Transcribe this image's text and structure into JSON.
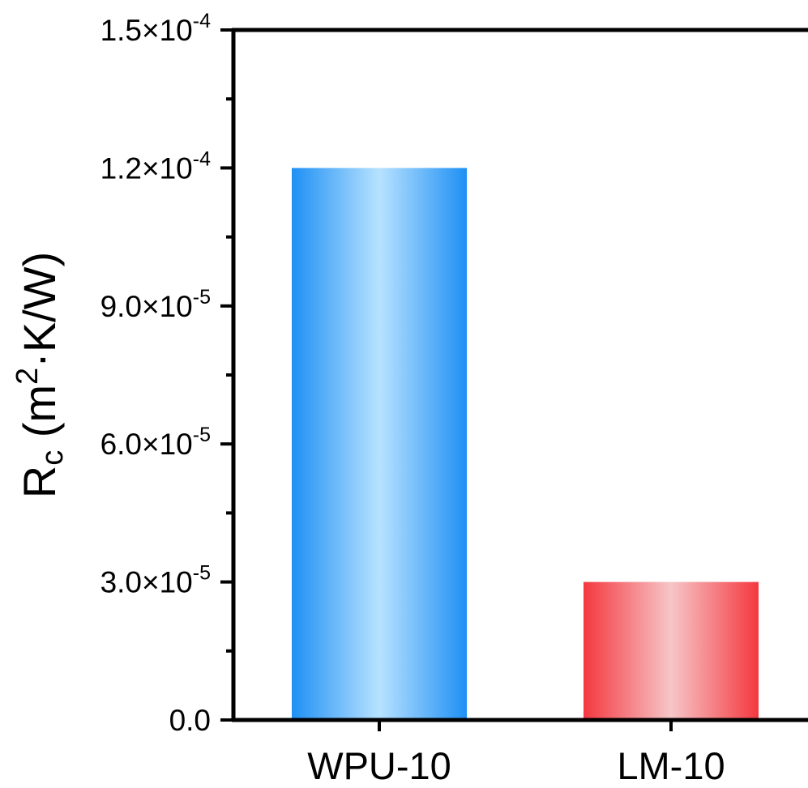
{
  "chart_data": {
    "type": "bar",
    "categories": [
      "WPU-10",
      "LM-10"
    ],
    "values": [
      0.00012,
      3e-05
    ],
    "title": "",
    "xlabel": "",
    "ylabel": {
      "main": "R",
      "subscript": "c",
      "units_prefix": " (m",
      "units_superscript": "2",
      "units_suffix": "·K/W)"
    },
    "ylim": [
      0,
      0.00015
    ],
    "yticks": [
      {
        "value": 0,
        "mantissa": "0.0",
        "exponent": ""
      },
      {
        "value": 3e-05,
        "mantissa": "3.0×10",
        "exponent": "-5"
      },
      {
        "value": 6e-05,
        "mantissa": "6.0×10",
        "exponent": "-5"
      },
      {
        "value": 9e-05,
        "mantissa": "9.0×10",
        "exponent": "-5"
      },
      {
        "value": 0.00012,
        "mantissa": "1.2×10",
        "exponent": "-4"
      },
      {
        "value": 0.00015,
        "mantissa": "1.5×10",
        "exponent": "-4"
      }
    ],
    "minor_ticks": [
      1.5e-05,
      4.5e-05,
      7.5e-05,
      0.000105,
      0.000135
    ],
    "grid": false,
    "colors": {
      "WPU-10": {
        "edge": "#1e90f4",
        "center": "#b8e2ff"
      },
      "LM-10": {
        "edge": "#f4383f",
        "center": "#f6c6c8"
      }
    }
  }
}
